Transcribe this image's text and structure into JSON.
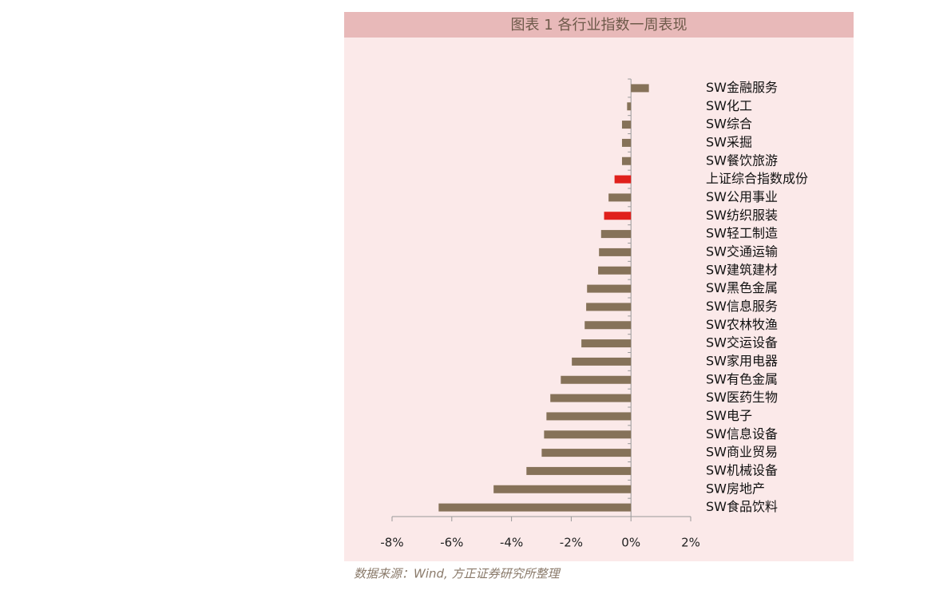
{
  "chart_data": {
    "type": "hbar",
    "title": "图表 1 各行业指数一周表现",
    "source": "数据来源：Wind, 方正证券研究所整理",
    "categories": [
      "SW金融服务",
      "SW化工",
      "SW综合",
      "SW采掘",
      "SW餐饮旅游",
      "上证综合指数成份",
      "SW公用事业",
      "SW纺织服装",
      "SW轻工制造",
      "SW交通运输",
      "SW建筑建材",
      "SW黑色金属",
      "SW信息服务",
      "SW农林牧渔",
      "SW交运设备",
      "SW家用电器",
      "SW有色金属",
      "SW医药生物",
      "SW电子",
      "SW信息设备",
      "SW商业贸易",
      "SW机械设备",
      "SW房地产",
      "SW食品饮料"
    ],
    "values": [
      0.6,
      -0.13,
      -0.3,
      -0.3,
      -0.3,
      -0.55,
      -0.75,
      -0.9,
      -1.0,
      -1.07,
      -1.1,
      -1.47,
      -1.5,
      -1.55,
      -1.66,
      -1.98,
      -2.35,
      -2.7,
      -2.83,
      -2.91,
      -2.99,
      -3.5,
      -4.6,
      -6.44
    ],
    "colors": [
      "#867259",
      "#867259",
      "#867259",
      "#867259",
      "#867259",
      "#e0201c",
      "#867259",
      "#e0201c",
      "#867259",
      "#867259",
      "#867259",
      "#867259",
      "#867259",
      "#867259",
      "#867259",
      "#867259",
      "#867259",
      "#867259",
      "#867259",
      "#867259",
      "#867259",
      "#867259",
      "#867259",
      "#867259"
    ],
    "xlim": [
      -8,
      2
    ],
    "xticks": [
      {
        "value": -8,
        "label": "-8%"
      },
      {
        "value": -6,
        "label": "-6%"
      },
      {
        "value": -4,
        "label": "-4%"
      },
      {
        "value": -2,
        "label": "-2%"
      },
      {
        "value": 0,
        "label": "0%"
      },
      {
        "value": 2,
        "label": "2%"
      }
    ]
  }
}
